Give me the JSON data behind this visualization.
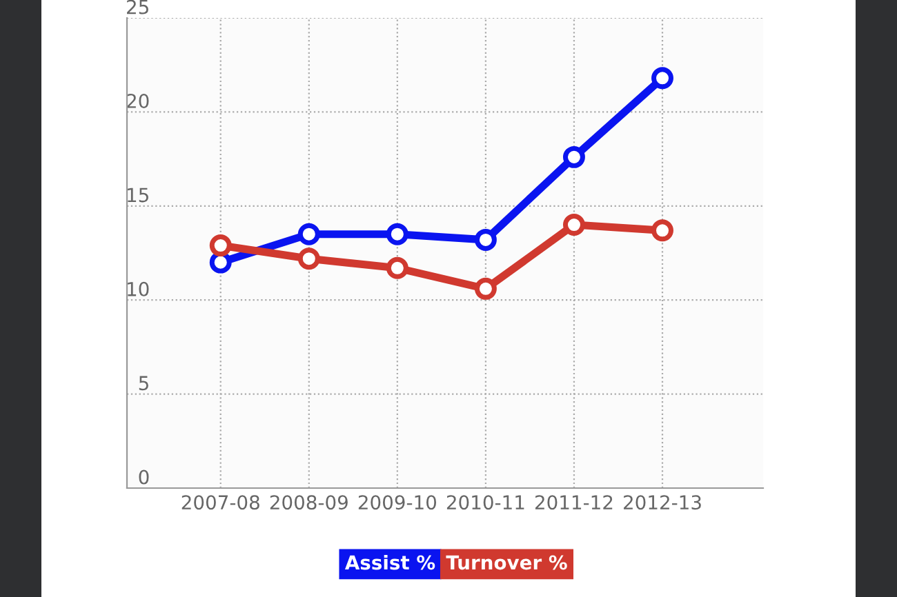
{
  "chart_data": {
    "type": "line",
    "categories": [
      "2007-08",
      "2008-09",
      "2009-10",
      "2010-11",
      "2011-12",
      "2012-13"
    ],
    "series": [
      {
        "name": "Assist %",
        "color": "#0a14f0",
        "values": [
          12.0,
          13.5,
          13.5,
          13.2,
          17.6,
          21.8
        ]
      },
      {
        "name": "Turnover %",
        "color": "#d0392f",
        "values": [
          12.9,
          12.2,
          11.7,
          10.6,
          14.0,
          13.7
        ]
      }
    ],
    "ylim": [
      0,
      25
    ],
    "yticks": [
      0,
      5,
      10,
      15,
      20,
      25
    ],
    "grid": true,
    "legend": "bottom",
    "marker": "circle",
    "line_style": "solid"
  }
}
